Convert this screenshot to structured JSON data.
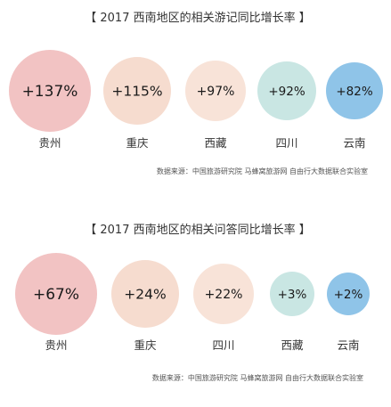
{
  "chart_data": [
    {
      "type": "bubble",
      "title": "【 2017 西南地区的相关游记同比增长率 】",
      "categories": [
        "贵州",
        "重庆",
        "西藏",
        "四川",
        "云南"
      ],
      "values": [
        137,
        115,
        97,
        92,
        82
      ],
      "value_labels": [
        "+137%",
        "+115%",
        "+97%",
        "+92%",
        "+82%"
      ],
      "colors": [
        "#f2c3c3",
        "#f6dccf",
        "#f8e3d8",
        "#c9e6e3",
        "#8fc4e8"
      ],
      "source": "数据来源：中国旅游研究院 马蜂窝旅游网 自由行大数据联合实验室"
    },
    {
      "type": "bubble",
      "title": "【 2017 西南地区的相关问答同比增长率 】",
      "categories": [
        "贵州",
        "重庆",
        "四川",
        "西藏",
        "云南"
      ],
      "values": [
        67,
        24,
        22,
        3,
        2
      ],
      "value_labels": [
        "+67%",
        "+24%",
        "+22%",
        "+3%",
        "+2%"
      ],
      "colors": [
        "#f2c3c3",
        "#f6dccf",
        "#f8e3d8",
        "#c9e6e3",
        "#8fc4e8"
      ],
      "source": "数据来源：中国旅游研究院 马蜂窝旅游网 自由行大数据联合实验室"
    }
  ]
}
